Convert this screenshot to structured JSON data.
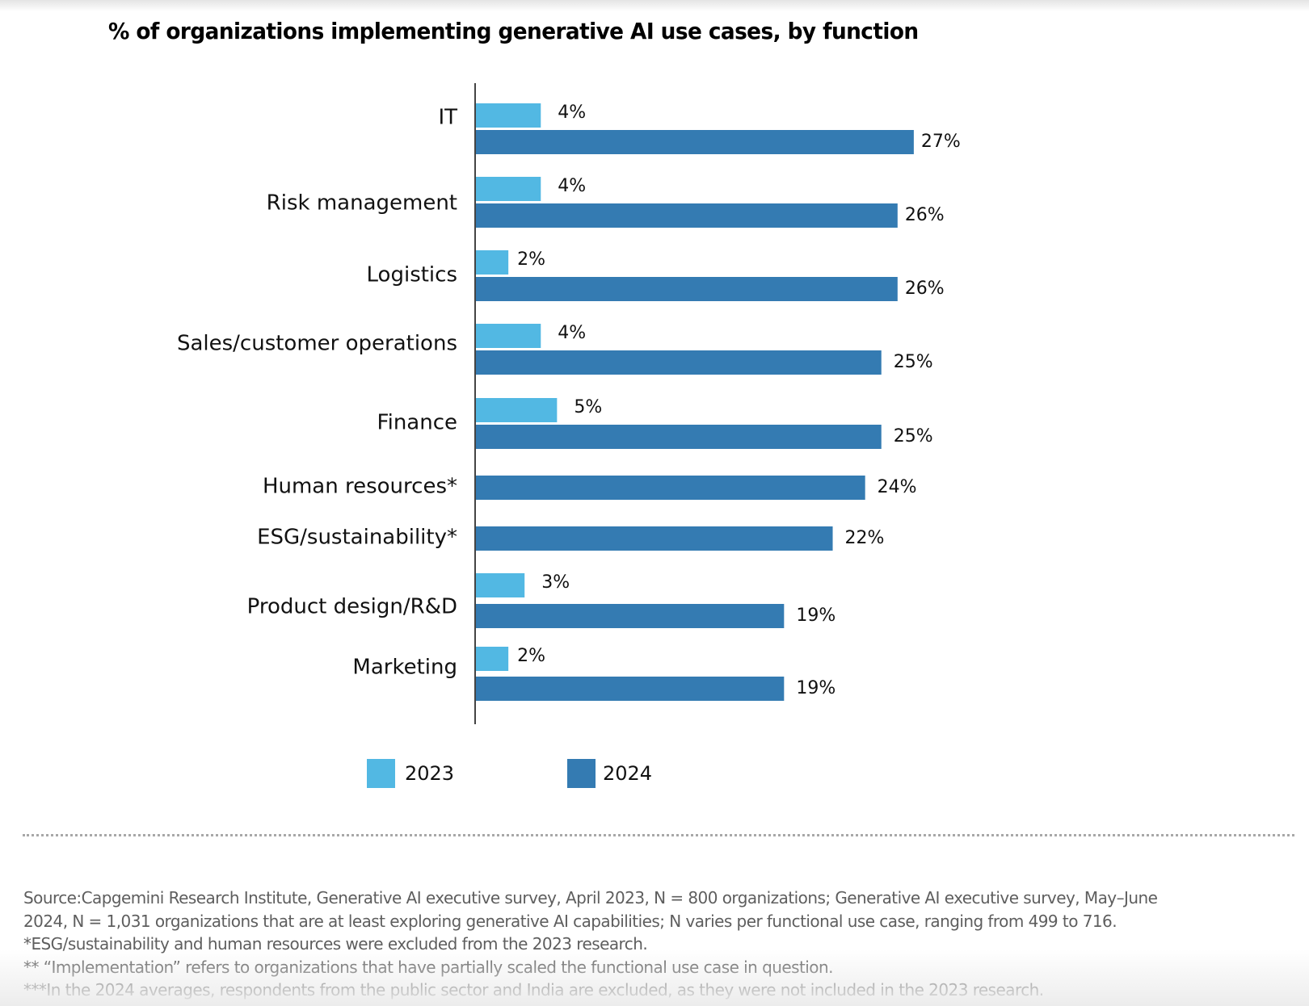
{
  "chart_data": {
    "type": "bar",
    "orientation": "horizontal",
    "title": "% of organizations implementing generative AI use cases, by function",
    "xlabel": "",
    "ylabel": "",
    "xlim": [
      0,
      27
    ],
    "grid": false,
    "legend_position": "bottom",
    "value_suffix": "%",
    "categories": [
      "IT",
      "Risk management",
      "Logistics",
      "Sales/customer operations",
      "Finance",
      "Human resources*",
      "ESG/sustainability*",
      "Product design/R&D",
      "Marketing"
    ],
    "series": [
      {
        "name": "2023",
        "color": "#52b8e3",
        "values": [
          4,
          4,
          2,
          4,
          5,
          null,
          null,
          3,
          2
        ],
        "labels": [
          "4%",
          "4%",
          "2%",
          "4%",
          "5%",
          null,
          null,
          "3%",
          "2%"
        ]
      },
      {
        "name": "2024",
        "color": "#347bb2",
        "values": [
          27,
          26,
          26,
          25,
          25,
          24,
          22,
          19,
          19
        ],
        "labels": [
          "27%",
          "26%",
          "26%",
          "25%",
          "25%",
          "24%",
          "22%",
          "19%",
          "19%"
        ]
      }
    ]
  },
  "legend": {
    "items": [
      {
        "label": "2023",
        "color": "#52b8e3"
      },
      {
        "label": "2024",
        "color": "#347bb2"
      }
    ]
  },
  "footnotes": {
    "lines": [
      "Source:Capgemini Research Institute, Generative AI executive survey, April 2023, N = 800 organizations; Generative AI executive survey, May–June",
      "2024, N = 1,031 organizations that are at least exploring generative AI capabilities; N varies per functional use case, ranging from 499 to 716.",
      "*ESG/sustainability and human resources were excluded from the 2023 research.",
      "** “Implementation” refers to organizations that have partially scaled the functional use case in question.",
      "***In the 2024 averages, respondents from the public sector and India are excluded, as they were not included in the 2023 research."
    ]
  }
}
